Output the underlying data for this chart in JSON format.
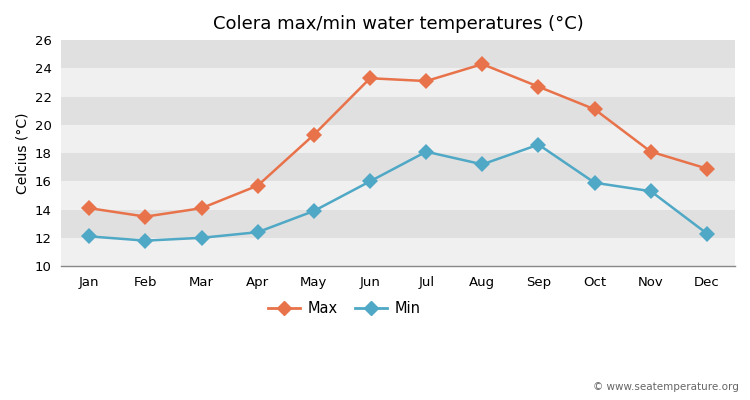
{
  "title": "Colera max/min water temperatures (°C)",
  "xlabel": "",
  "ylabel": "Celcius (°C)",
  "months": [
    "Jan",
    "Feb",
    "Mar",
    "Apr",
    "May",
    "Jun",
    "Jul",
    "Aug",
    "Sep",
    "Oct",
    "Nov",
    "Dec"
  ],
  "max_values": [
    14.1,
    13.5,
    14.1,
    15.7,
    19.3,
    23.3,
    23.1,
    24.3,
    22.7,
    21.1,
    18.1,
    16.9
  ],
  "min_values": [
    12.1,
    11.8,
    12.0,
    12.4,
    13.9,
    16.0,
    18.1,
    17.2,
    18.6,
    15.9,
    15.3,
    12.3
  ],
  "max_color": "#e8724a",
  "min_color": "#4fa8c5",
  "ylim": [
    10,
    26
  ],
  "yticks": [
    10,
    12,
    14,
    16,
    18,
    20,
    22,
    24,
    26
  ],
  "band_color_light": "#f0f0f0",
  "band_color_dark": "#e0e0e0",
  "figure_bg": "#ffffff",
  "title_fontsize": 13,
  "axis_label_fontsize": 10,
  "watermark": "© www.seatemperature.org",
  "legend_labels": [
    "Max",
    "Min"
  ]
}
